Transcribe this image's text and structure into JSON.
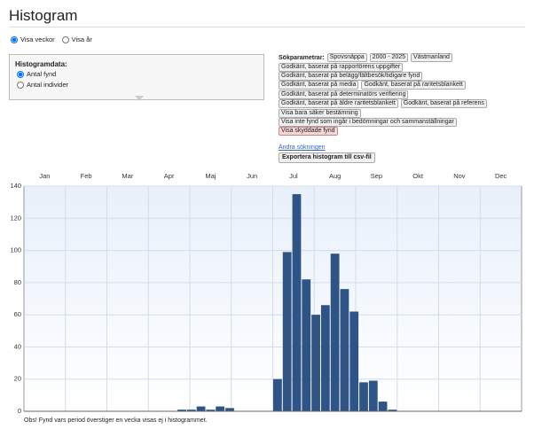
{
  "header": {
    "title": "Histogram"
  },
  "view_options": [
    "Visa veckor",
    "Visa år"
  ],
  "histogram_data": {
    "label": "Histogramdata:",
    "options": [
      "Antal fynd",
      "Antal individer"
    ]
  },
  "search": {
    "label": "Sökparametrar:",
    "rows": [
      [
        "Spovsnäppa",
        "2000 - 2025",
        "Västmanland"
      ],
      [
        "Godkänt, baserat på rapportörens uppgifter"
      ],
      [
        "Godkänt, baserat på belägg/fältbesök/tidigare fynd"
      ],
      [
        "Godkänt, baserat på media",
        "Godkänt, baserat på raritetsblankett"
      ],
      [
        "Godkänt, baserat på determinatörs verifiering"
      ],
      [
        "Godkänt, baserat på äldre raritetsblankett",
        "Godkänt, baserat på referens"
      ],
      [
        "Visa bara säker bestämning"
      ],
      [
        "Visa inte fynd som ingår i bedömningar och sammanställningar"
      ],
      [
        "Visa skyddade fynd"
      ]
    ],
    "link": "Ändra sökningen",
    "export": "Exportera histogram till csv-fil"
  },
  "chart_data": {
    "type": "histogram",
    "color": "#2e5486",
    "grid": true,
    "months": [
      "Jan",
      "Feb",
      "Mar",
      "Apr",
      "Maj",
      "Jun",
      "Jul",
      "Aug",
      "Sep",
      "Okt",
      "Nov",
      "Dec"
    ],
    "values": [
      0,
      0,
      0,
      0,
      0,
      0,
      0,
      0,
      0,
      0,
      0,
      0,
      0,
      0,
      0,
      0,
      1,
      1,
      3,
      1,
      3,
      2,
      0,
      0,
      0,
      0,
      20,
      99,
      135,
      82,
      60,
      66,
      98,
      76,
      62,
      18,
      19,
      6,
      1,
      0,
      0,
      0,
      0,
      0,
      0,
      0,
      0,
      0,
      0,
      0,
      0,
      0
    ],
    "ylim": [
      0,
      140
    ],
    "yticks": [
      0,
      20,
      40,
      60,
      80,
      100,
      120,
      140
    ]
  },
  "footnote": "Obs! Fynd vars period överstiger en vecka visas ej i histogrammet."
}
